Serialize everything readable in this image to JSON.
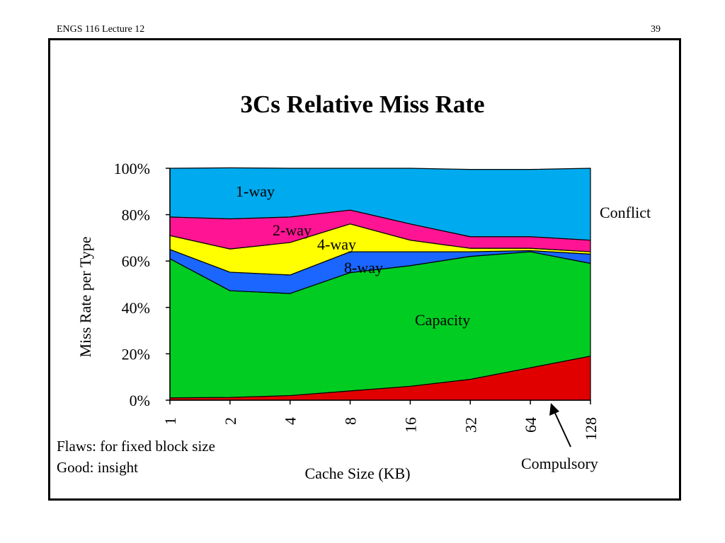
{
  "header": {
    "left": "ENGS 116  Lecture 12",
    "page_number": "39"
  },
  "notes": {
    "flaws": "Flaws:  for fixed block size",
    "good": "Good:  insight"
  },
  "chart_data": {
    "type": "area",
    "title": "3Cs Relative Miss Rate",
    "xlabel": "Cache Size (KB)",
    "ylabel": "Miss Rate per Type",
    "categories": [
      "1",
      "2",
      "4",
      "8",
      "16",
      "32",
      "64",
      "128"
    ],
    "ylim": [
      0,
      100
    ],
    "yticks": [
      "0%",
      "20%",
      "40%",
      "60%",
      "80%",
      "100%"
    ],
    "stacking": "percent",
    "grid": false,
    "series": [
      {
        "name": "Compulsory",
        "color": "#e00000",
        "values": [
          1,
          1.2,
          2,
          4,
          6,
          9,
          14,
          19
        ]
      },
      {
        "name": "Capacity",
        "color": "#00cc22",
        "values": [
          60,
          46,
          44,
          51,
          52,
          53,
          50,
          40
        ]
      },
      {
        "name": "8-way",
        "color": "#1a66ff",
        "values": [
          4,
          8,
          8,
          9,
          6,
          2,
          0.5,
          4
        ]
      },
      {
        "name": "4-way",
        "color": "#ffff00",
        "values": [
          6,
          10,
          14,
          12,
          5,
          1.5,
          1,
          1
        ]
      },
      {
        "name": "2-way",
        "color": "#ff1493",
        "values": [
          8,
          13,
          11,
          6,
          7,
          5,
          5,
          5
        ]
      },
      {
        "name": "1-way",
        "color": "#00aaee",
        "values": [
          21,
          22,
          21,
          18,
          24,
          29,
          29,
          31
        ]
      }
    ],
    "series_labels": [
      "1-way",
      "2-way",
      "4-way",
      "8-way",
      "Capacity"
    ],
    "callouts": {
      "conflict": "Conflict",
      "compulsory": "Compulsory"
    }
  }
}
